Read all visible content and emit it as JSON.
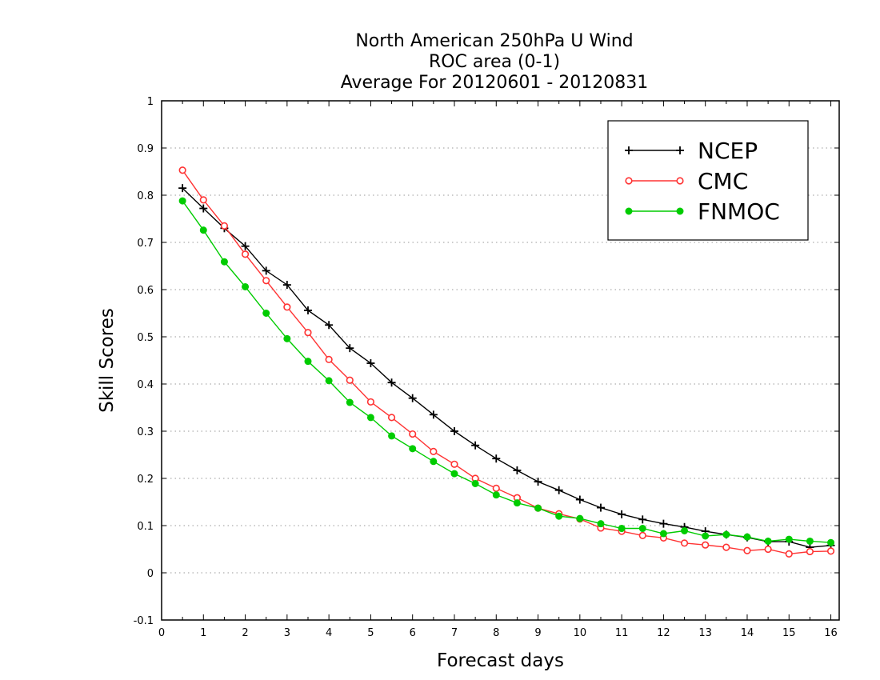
{
  "chart_data": {
    "type": "line",
    "title_lines": [
      "North American 250hPa U Wind",
      "ROC area (0-1)",
      "Average For 20120601 - 20120831"
    ],
    "xlabel": "Forecast days",
    "ylabel": "Skill Scores",
    "xlim": [
      0,
      16.2
    ],
    "ylim": [
      -0.1,
      1
    ],
    "x_ticks": [
      0,
      1,
      2,
      3,
      4,
      5,
      6,
      7,
      8,
      9,
      10,
      11,
      12,
      13,
      14,
      15,
      16
    ],
    "y_ticks": [
      -0.1,
      0,
      0.1,
      0.2,
      0.3,
      0.4,
      0.5,
      0.6,
      0.7,
      0.8,
      0.9,
      1
    ],
    "y_tick_labels": [
      "-0.1",
      "0",
      "0.1",
      "0.2",
      "0.3",
      "0.4",
      "0.5",
      "0.6",
      "0.7",
      "0.8",
      "0.9",
      "1"
    ],
    "grid": "horizontal dotted",
    "legend_position": "top-right",
    "x": [
      0.5,
      1,
      1.5,
      2,
      2.5,
      3,
      3.5,
      4,
      4.5,
      5,
      5.5,
      6,
      6.5,
      7,
      7.5,
      8,
      8.5,
      9,
      9.5,
      10,
      10.5,
      11,
      11.5,
      12,
      12.5,
      13,
      13.5,
      14,
      14.5,
      15,
      15.5,
      16
    ],
    "series": [
      {
        "name": "NCEP",
        "color": "#000000",
        "marker": "plus",
        "values": [
          0.815,
          0.772,
          0.73,
          0.692,
          0.64,
          0.61,
          0.556,
          0.525,
          0.476,
          0.444,
          0.403,
          0.37,
          0.335,
          0.3,
          0.27,
          0.242,
          0.217,
          0.193,
          0.175,
          0.155,
          0.138,
          0.124,
          0.113,
          0.104,
          0.097,
          0.088,
          0.081,
          0.075,
          0.066,
          0.066,
          0.054,
          0.058
        ]
      },
      {
        "name": "CMC",
        "color": "#ff3333",
        "marker": "open-circle",
        "values": [
          0.853,
          0.79,
          0.735,
          0.675,
          0.619,
          0.563,
          0.509,
          0.452,
          0.408,
          0.362,
          0.329,
          0.294,
          0.257,
          0.23,
          0.2,
          0.179,
          0.159,
          0.137,
          0.125,
          0.114,
          0.095,
          0.088,
          0.079,
          0.074,
          0.063,
          0.059,
          0.054,
          0.047,
          0.05,
          0.04,
          0.045,
          0.046
        ]
      },
      {
        "name": "FNMOC",
        "color": "#00cc00",
        "marker": "filled-circle",
        "values": [
          0.788,
          0.726,
          0.659,
          0.606,
          0.55,
          0.496,
          0.448,
          0.407,
          0.361,
          0.329,
          0.29,
          0.263,
          0.236,
          0.21,
          0.189,
          0.165,
          0.148,
          0.137,
          0.12,
          0.115,
          0.104,
          0.094,
          0.094,
          0.083,
          0.089,
          0.078,
          0.081,
          0.076,
          0.067,
          0.071,
          0.067,
          0.064
        ]
      }
    ]
  }
}
